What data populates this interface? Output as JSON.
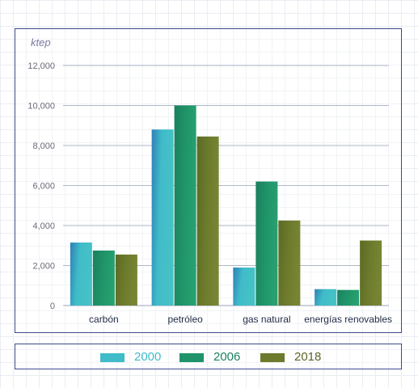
{
  "chart_data": {
    "type": "bar",
    "unit_label": "ktep",
    "categories": [
      "carbón",
      "petróleo",
      "gas natural",
      "energías renovables"
    ],
    "series": [
      {
        "name": "2000",
        "values": [
          3150,
          8800,
          1900,
          820
        ],
        "color": "#3fbcc8"
      },
      {
        "name": "2006",
        "values": [
          2750,
          10000,
          6200,
          780
        ],
        "color": "#1f9468"
      },
      {
        "name": "2018",
        "values": [
          2550,
          8450,
          4250,
          3250
        ],
        "color": "#6c7a2c"
      }
    ],
    "ylim": [
      0,
      12000
    ],
    "yticks": [
      0,
      2000,
      4000,
      6000,
      8000,
      10000,
      12000
    ],
    "ytick_labels": [
      "0",
      "2,000",
      "4,000",
      "6,000",
      "8,000",
      "10,000",
      "12,000"
    ],
    "grid": true,
    "legend_position": "bottom"
  }
}
